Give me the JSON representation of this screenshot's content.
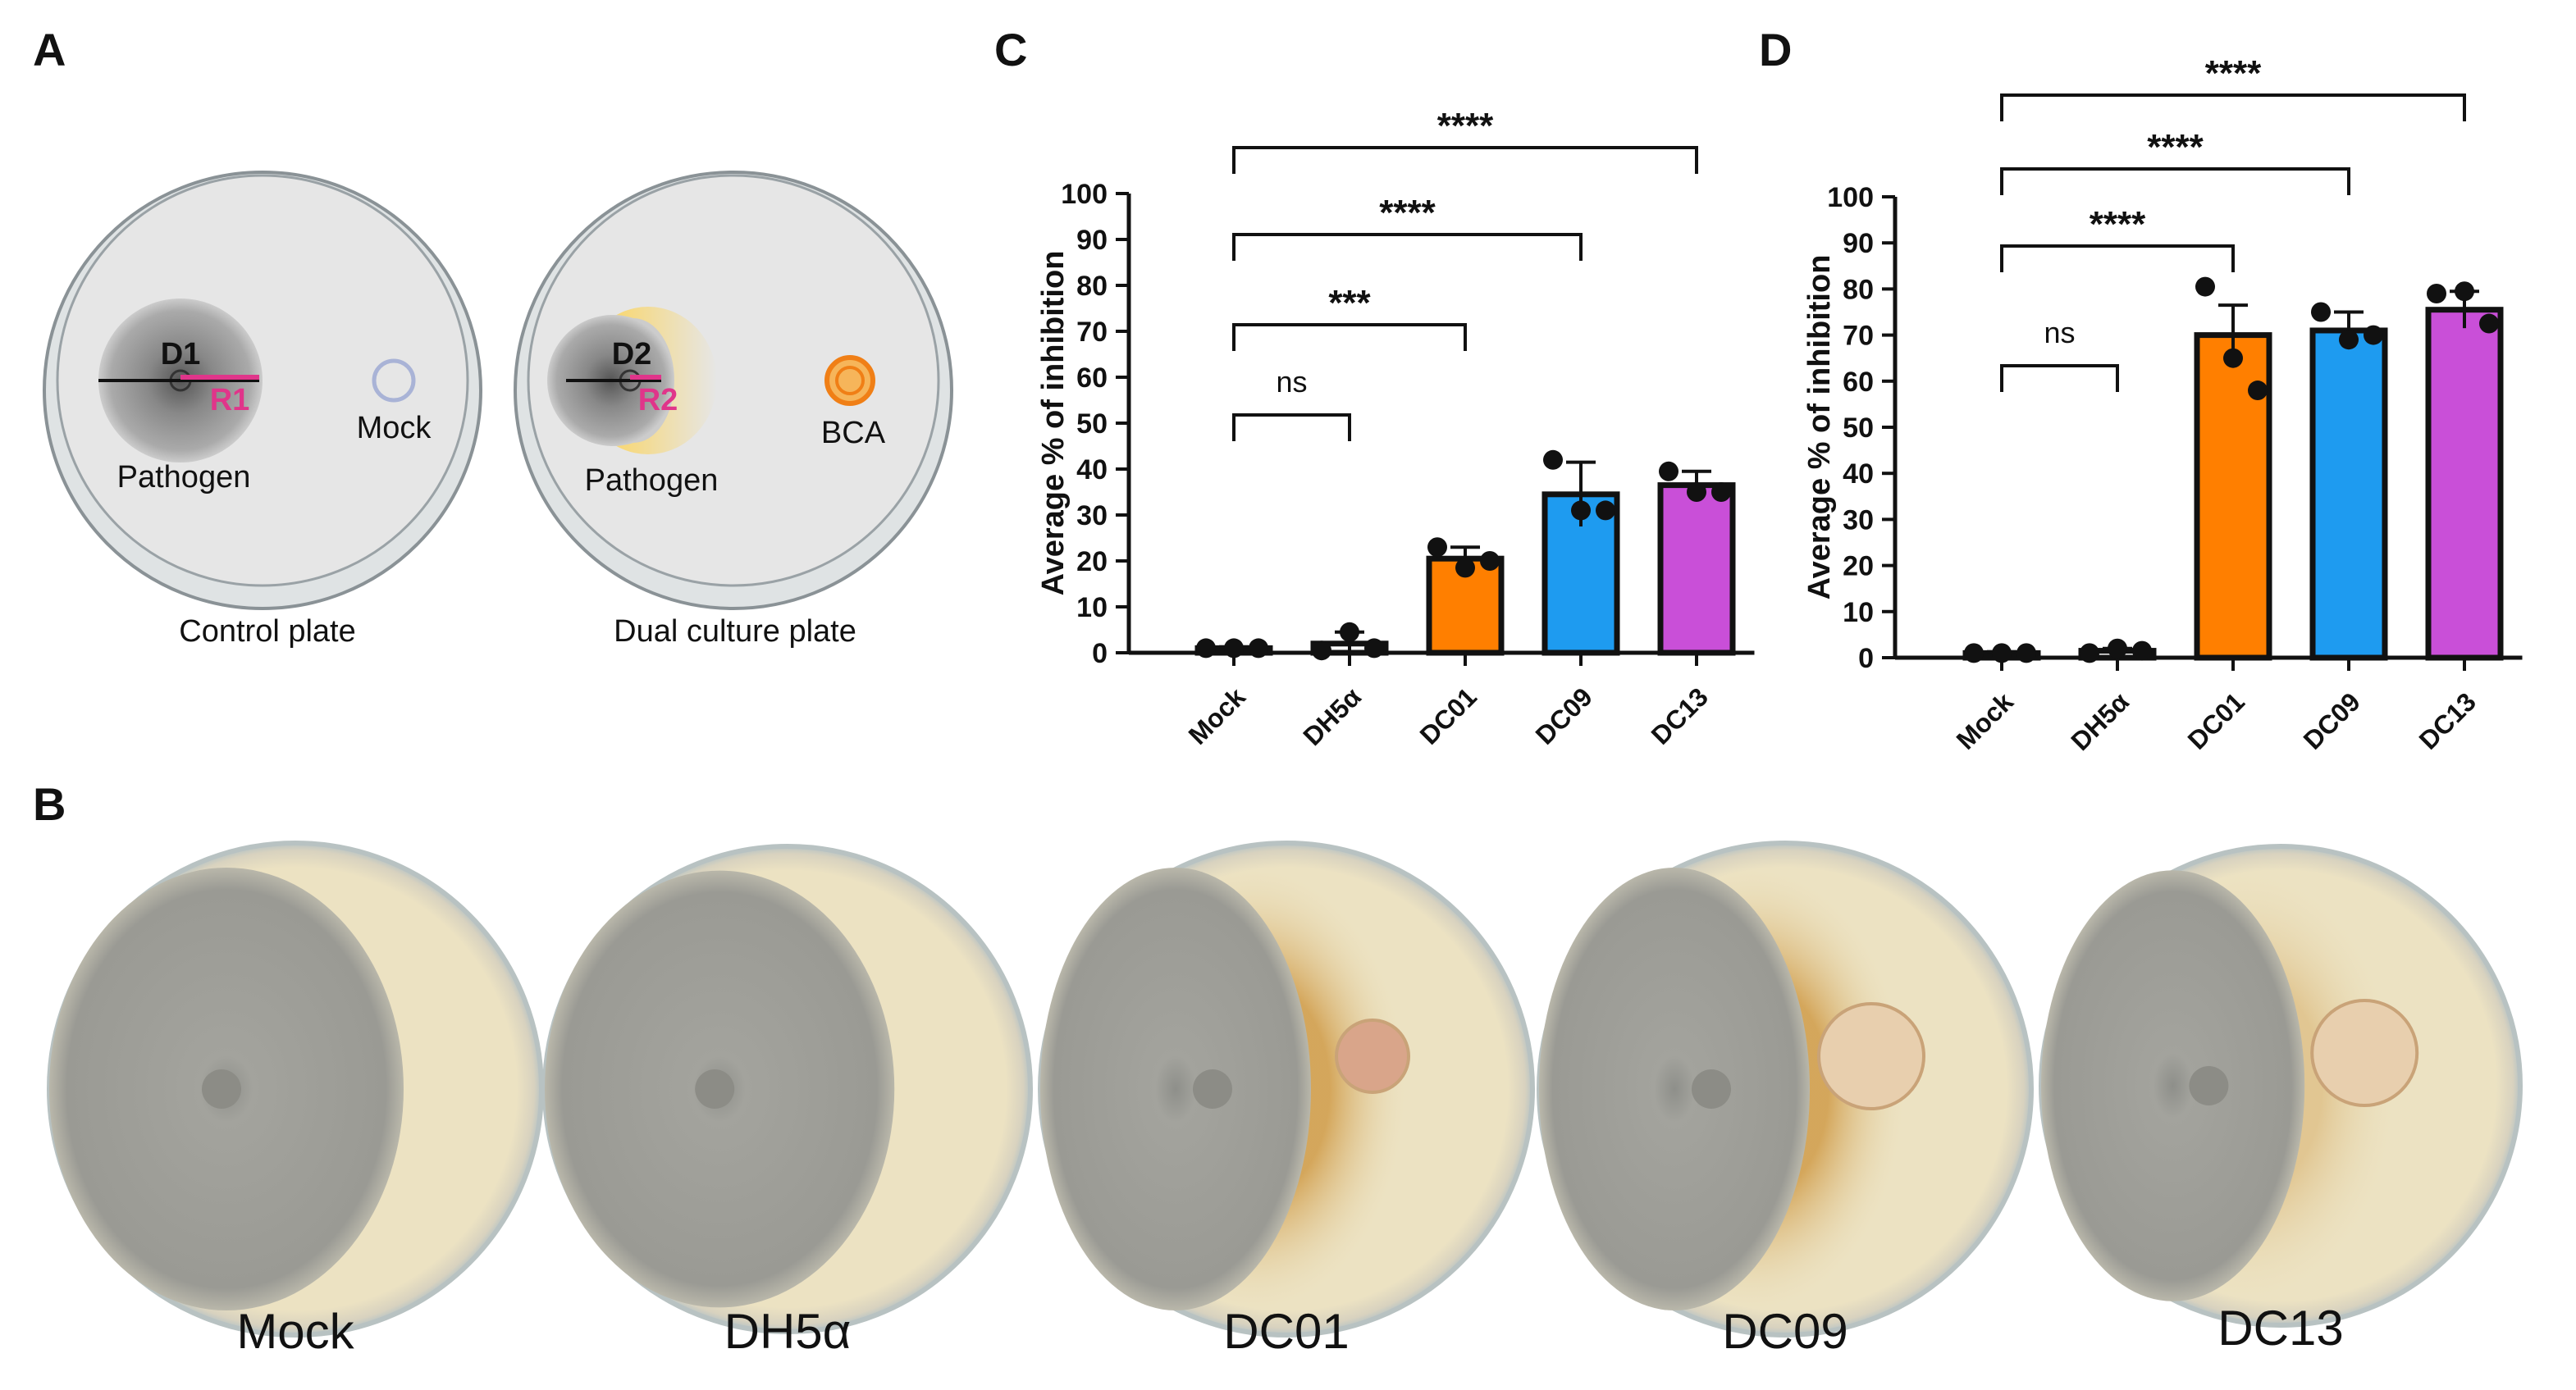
{
  "panels": {
    "a": "A",
    "b": "B",
    "c": "C",
    "d": "D"
  },
  "diagram": {
    "control": {
      "diameter": "D1",
      "radius": "R1",
      "blank": "Mock",
      "pathogen": "Pathogen",
      "caption": "Control plate"
    },
    "dual": {
      "diameter": "D2",
      "radius": "R2",
      "agent": "BCA",
      "pathogen": "Pathogen",
      "caption": "Dual culture plate"
    }
  },
  "photos": {
    "labels": [
      "Mock",
      "DH5α",
      "DC01",
      "DC09",
      "DC13"
    ]
  },
  "chart_data": [
    {
      "type": "bar",
      "ylabel": "Average % of inhibition",
      "categories": [
        "Mock",
        "DH5α",
        "DC01",
        "DC09",
        "DC13"
      ],
      "values": [
        1,
        2,
        20.5,
        34.5,
        36.5
      ],
      "errors": [
        0.3,
        2.5,
        2.5,
        7,
        3
      ],
      "points": [
        [
          1,
          1,
          1
        ],
        [
          0.5,
          4.5,
          1
        ],
        [
          23,
          18.5,
          20
        ],
        [
          42,
          31,
          31
        ],
        [
          39.5,
          35,
          35
        ]
      ],
      "colors": [
        "#ffffff",
        "#ffffff",
        "#ff7f00",
        "#1e9bf0",
        "#c94fd8"
      ],
      "significance": [
        null,
        "ns",
        "***",
        "****",
        "****"
      ],
      "ylim": [
        0,
        100
      ],
      "yticks": [
        0,
        10,
        20,
        30,
        40,
        50,
        60,
        70,
        80,
        90,
        100
      ]
    },
    {
      "type": "bar",
      "ylabel": "Average % of inhibition",
      "categories": [
        "Mock",
        "DH5α",
        "DC01",
        "DC09",
        "DC13"
      ],
      "values": [
        1,
        1.5,
        70,
        71,
        75.5
      ],
      "errors": [
        0.3,
        0.5,
        6.5,
        4,
        4
      ],
      "points": [
        [
          1,
          1,
          1
        ],
        [
          1,
          2,
          1.5
        ],
        [
          80.5,
          65,
          58
        ],
        [
          75,
          69,
          70
        ],
        [
          79,
          79.5,
          72.5
        ]
      ],
      "colors": [
        "#ffffff",
        "#ffffff",
        "#ff7f00",
        "#1e9bf0",
        "#c94fd8"
      ],
      "significance": [
        null,
        "ns",
        "****",
        "****",
        "****"
      ],
      "ylim": [
        0,
        100
      ],
      "yticks": [
        0,
        10,
        20,
        30,
        40,
        50,
        60,
        70,
        80,
        90,
        100
      ]
    }
  ]
}
